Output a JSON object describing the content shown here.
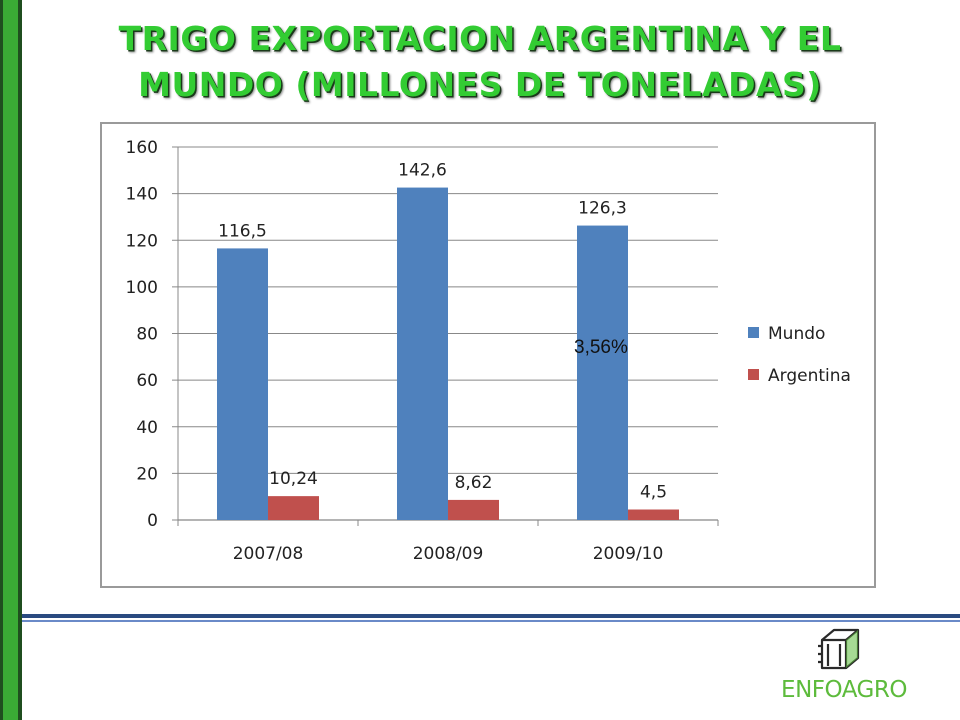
{
  "slide": {
    "title_line1": "TRIGO EXPORTACION ARGENTINA Y EL",
    "title_line2": "MUNDO (MILLONES DE TONELADAS)",
    "annotation": "3,56%",
    "logo_text": "ENFOAGRO"
  },
  "chart_data": {
    "type": "bar",
    "categories": [
      "2007/08",
      "2008/09",
      "2009/10"
    ],
    "series": [
      {
        "name": "Mundo",
        "values": [
          116.5,
          142.6,
          126.3
        ],
        "labels": [
          "116,5",
          "142,6",
          "126,3"
        ],
        "color": "#4f81bd"
      },
      {
        "name": "Argentina",
        "values": [
          10.24,
          8.62,
          4.5
        ],
        "labels": [
          "10,24",
          "8,62",
          "4,5"
        ],
        "color": "#c0504d"
      }
    ],
    "ylim": [
      0,
      160
    ],
    "yticks": [
      0,
      20,
      40,
      60,
      80,
      100,
      120,
      140,
      160
    ],
    "grid": true,
    "legend": "right"
  },
  "colors": {
    "title_green": "#33cc33",
    "mundo": "#4f81bd",
    "argentina": "#c0504d",
    "logo_green": "#5dbb3c"
  }
}
